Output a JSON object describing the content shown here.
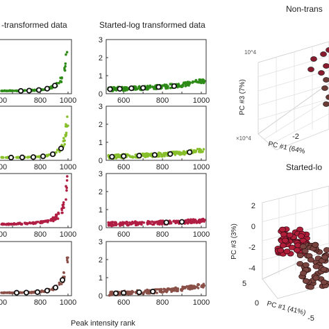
{
  "titles": {
    "left_col": "-transformed data",
    "mid_col": "Started-log transformed data",
    "right_top": "Non-trans",
    "right_bottom": "Started-lo"
  },
  "xlabel": "Peak intensity rank",
  "series_colors": [
    "#2e8b18",
    "#86bf2a",
    "#b01e44",
    "#8a5048"
  ],
  "chart_data": [
    {
      "type": "scatter",
      "panel": "non-transformed",
      "x_ticks": [
        "00",
        "800",
        "1000"
      ],
      "x_tick_values": [
        600,
        800,
        1000
      ],
      "rows": [
        {
          "color": "#2e8b18",
          "points": [
            [
              560,
              0
            ],
            [
              600,
              0
            ],
            [
              650,
              0.01
            ],
            [
              700,
              0.02
            ],
            [
              750,
              0.04
            ],
            [
              800,
              0.08
            ],
            [
              850,
              0.15
            ],
            [
              900,
              0.3
            ],
            [
              940,
              0.6
            ],
            [
              960,
              0.9
            ],
            [
              975,
              1.3
            ],
            [
              985,
              1.9
            ],
            [
              992,
              2.5
            ],
            [
              997,
              3.2
            ]
          ],
          "markers": [
            [
              660,
              0
            ],
            [
              720,
              0.02
            ],
            [
              790,
              0.06
            ],
            [
              850,
              0.15
            ],
            [
              905,
              0.35
            ]
          ]
        },
        {
          "color": "#86bf2a",
          "points": [
            [
              560,
              0
            ],
            [
              600,
              0
            ],
            [
              650,
              0.01
            ],
            [
              700,
              0.02
            ],
            [
              750,
              0.03
            ],
            [
              800,
              0.06
            ],
            [
              850,
              0.12
            ],
            [
              900,
              0.25
            ],
            [
              940,
              0.5
            ],
            [
              960,
              0.8
            ],
            [
              975,
              1.2
            ],
            [
              985,
              1.8
            ],
            [
              992,
              2.4
            ],
            [
              997,
              3.0
            ]
          ],
          "markers": [
            [
              590,
              0
            ],
            [
              670,
              0.01
            ],
            [
              750,
              0.03
            ],
            [
              820,
              0.08
            ],
            [
              890,
              0.22
            ],
            [
              950,
              0.6
            ]
          ]
        },
        {
          "color": "#b01e44",
          "points": [
            [
              560,
              0.05
            ],
            [
              600,
              0.06
            ],
            [
              650,
              0.08
            ],
            [
              700,
              0.1
            ],
            [
              750,
              0.13
            ],
            [
              800,
              0.18
            ],
            [
              850,
              0.25
            ],
            [
              900,
              0.4
            ],
            [
              940,
              0.7
            ],
            [
              960,
              1.0
            ],
            [
              975,
              1.5
            ],
            [
              985,
              2.1
            ],
            [
              992,
              2.6
            ],
            [
              997,
              3.0
            ]
          ],
          "markers": []
        },
        {
          "color": "#8a5048",
          "points": [
            [
              560,
              0
            ],
            [
              600,
              0
            ],
            [
              650,
              0.01
            ],
            [
              700,
              0.02
            ],
            [
              750,
              0.04
            ],
            [
              800,
              0.08
            ],
            [
              850,
              0.15
            ],
            [
              900,
              0.3
            ],
            [
              940,
              0.55
            ],
            [
              960,
              0.85
            ],
            [
              975,
              1.2
            ],
            [
              985,
              1.7
            ],
            [
              992,
              2.2
            ],
            [
              997,
              2.8
            ]
          ],
          "markers": [
            [
              630,
              0.01
            ],
            [
              700,
              0.02
            ],
            [
              780,
              0.05
            ],
            [
              850,
              0.15
            ],
            [
              910,
              0.35
            ],
            [
              960,
              0.85
            ]
          ]
        }
      ]
    },
    {
      "type": "scatter",
      "panel": "started-log",
      "ylim": [
        0,
        3
      ],
      "y_ticks": [
        "0",
        "1",
        "2",
        "3"
      ],
      "x_ticks": [
        "600",
        "800",
        "1000"
      ],
      "x_tick_values": [
        600,
        800,
        1000
      ],
      "xlim": [
        510,
        1025
      ],
      "rows": [
        {
          "color": "#2e8b18",
          "points": [
            [
              520,
              0.25
            ],
            [
              600,
              0.28
            ],
            [
              700,
              0.32
            ],
            [
              800,
              0.38
            ],
            [
              900,
              0.48
            ],
            [
              1000,
              0.7
            ]
          ],
          "markers": [
            [
              530,
              0.25
            ],
            [
              580,
              0.27
            ],
            [
              640,
              0.3
            ],
            [
              700,
              0.32
            ],
            [
              780,
              0.37
            ],
            [
              860,
              0.42
            ]
          ]
        },
        {
          "color": "#86bf2a",
          "points": [
            [
              520,
              0.2
            ],
            [
              600,
              0.23
            ],
            [
              700,
              0.27
            ],
            [
              800,
              0.32
            ],
            [
              900,
              0.4
            ],
            [
              1000,
              0.55
            ]
          ],
          "markers": [
            [
              540,
              0.2
            ],
            [
              600,
              0.23
            ],
            [
              680,
              0.26
            ],
            [
              760,
              0.3
            ],
            [
              840,
              0.35
            ],
            [
              940,
              0.45
            ]
          ]
        },
        {
          "color": "#b01e44",
          "points": [
            [
              520,
              0.2
            ],
            [
              600,
              0.22
            ],
            [
              700,
              0.25
            ],
            [
              800,
              0.28
            ],
            [
              900,
              0.32
            ],
            [
              1000,
              0.38
            ]
          ],
          "markers": [
            [
              820,
              0.29
            ],
            [
              900,
              0.32
            ]
          ]
        },
        {
          "color": "#8a5048",
          "points": [
            [
              520,
              0.12
            ],
            [
              600,
              0.15
            ],
            [
              700,
              0.2
            ],
            [
              800,
              0.27
            ],
            [
              900,
              0.38
            ],
            [
              1000,
              0.55
            ]
          ],
          "markers": [
            [
              560,
              0.13
            ],
            [
              600,
              0.15
            ],
            [
              680,
              0.19
            ],
            [
              750,
              0.23
            ]
          ]
        }
      ]
    },
    {
      "type": "scatter3d",
      "panel": "pca-non-transformed",
      "z_exponent": "10^4",
      "x_exponent": "×10^4",
      "ylabel": "PC #3 (7%)",
      "xlabel": "PC #1 (64%",
      "x_ticks": [
        "-2"
      ],
      "points": [
        [
          0.0,
          0.0,
          0.0
        ]
      ]
    },
    {
      "type": "scatter3d",
      "panel": "pca-started-log",
      "ylabel": "PC #3 (3%)",
      "xlabel": "PC #1 (41%)",
      "y_ticks": [
        "2",
        "0",
        "-2",
        "-4"
      ],
      "x_ticks": [
        "5",
        "0",
        "-5"
      ]
    }
  ]
}
